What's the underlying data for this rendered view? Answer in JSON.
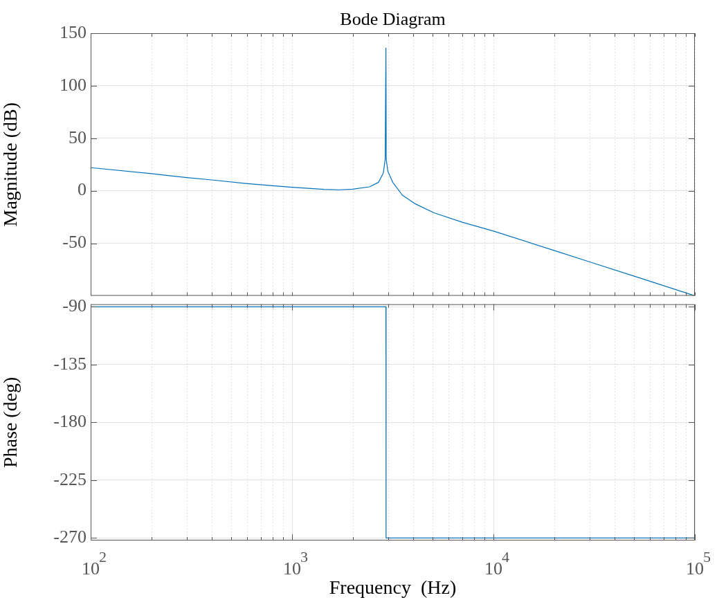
{
  "chart_data": [
    {
      "type": "line",
      "title": "Bode Diagram",
      "ylabel": "Magnitude (dB)",
      "tick_labels": "y",
      "grid": true,
      "xlim": [
        100,
        100000
      ],
      "xticks": [
        {
          "value": 100,
          "label": null
        },
        {
          "value": 200,
          "label": null
        },
        {
          "value": 300,
          "label": null
        },
        {
          "value": 400,
          "label": null
        },
        {
          "value": 500,
          "label": null
        },
        {
          "value": 600,
          "label": null
        },
        {
          "value": 700,
          "label": null
        },
        {
          "value": 800,
          "label": null
        },
        {
          "value": 900,
          "label": null
        },
        {
          "value": 1000,
          "label": null
        },
        {
          "value": 2000,
          "label": null
        },
        {
          "value": 3000,
          "label": null
        },
        {
          "value": 4000,
          "label": null
        },
        {
          "value": 5000,
          "label": null
        },
        {
          "value": 6000,
          "label": null
        },
        {
          "value": 7000,
          "label": null
        },
        {
          "value": 8000,
          "label": null
        },
        {
          "value": 9000,
          "label": null
        },
        {
          "value": 10000,
          "label": null
        },
        {
          "value": 20000,
          "label": null
        },
        {
          "value": 30000,
          "label": null
        },
        {
          "value": 40000,
          "label": null
        },
        {
          "value": 50000,
          "label": null
        },
        {
          "value": 60000,
          "label": null
        },
        {
          "value": 70000,
          "label": null
        },
        {
          "value": 80000,
          "label": null
        },
        {
          "value": 90000,
          "label": null
        },
        {
          "value": 100000,
          "label": null
        }
      ],
      "ylim": [
        -100,
        150
      ],
      "yticks": [
        -50,
        0,
        50,
        100,
        150
      ],
      "log": "x",
      "x": [
        100,
        200,
        300,
        400,
        600,
        1000,
        1440,
        1720,
        2000,
        2420,
        2690,
        2840,
        2900,
        2925,
        2935,
        2990,
        3160,
        3530,
        4050,
        5040,
        7000,
        10000,
        20100,
        29900,
        50400,
        100000
      ],
      "series": [
        {
          "color": "#0072bd",
          "values": [
            22,
            16.3,
            12.5,
            10.3,
            6.8,
            3.3,
            1.3,
            0.9,
            1.5,
            3.7,
            8.1,
            17,
            30,
            136,
            30,
            18.5,
            8.1,
            -4.2,
            -12,
            -20.8,
            -30,
            -38.4,
            -57,
            -67.6,
            -81.5,
            -100
          ]
        }
      ]
    },
    {
      "type": "line",
      "xlabel": "Frequency  (Hz)",
      "ylabel": "Phase (deg)",
      "grid": true,
      "xlim": [
        100,
        100000
      ],
      "xticks": [
        {
          "value": 100,
          "label": "10$^{2}$"
        },
        {
          "value": 200,
          "label": null
        },
        {
          "value": 300,
          "label": null
        },
        {
          "value": 400,
          "label": null
        },
        {
          "value": 500,
          "label": null
        },
        {
          "value": 600,
          "label": null
        },
        {
          "value": 700,
          "label": null
        },
        {
          "value": 800,
          "label": null
        },
        {
          "value": 900,
          "label": null
        },
        {
          "value": 1000,
          "label": "10$^{3}$"
        },
        {
          "value": 2000,
          "label": null
        },
        {
          "value": 3000,
          "label": null
        },
        {
          "value": 4000,
          "label": null
        },
        {
          "value": 5000,
          "label": null
        },
        {
          "value": 6000,
          "label": null
        },
        {
          "value": 7000,
          "label": null
        },
        {
          "value": 8000,
          "label": null
        },
        {
          "value": 9000,
          "label": null
        },
        {
          "value": 10000,
          "label": "10$^{4}$"
        },
        {
          "value": 20000,
          "label": null
        },
        {
          "value": 30000,
          "label": null
        },
        {
          "value": 40000,
          "label": null
        },
        {
          "value": 50000,
          "label": null
        },
        {
          "value": 60000,
          "label": null
        },
        {
          "value": 70000,
          "label": null
        },
        {
          "value": 80000,
          "label": null
        },
        {
          "value": 90000,
          "label": null
        },
        {
          "value": 100000,
          "label": "10$^{5}$"
        }
      ],
      "ylim": [
        -272,
        -88
      ],
      "yticks": [
        -270,
        -225,
        -180,
        -135,
        -90
      ],
      "log": "x",
      "x": [
        100,
        2925,
        2930,
        100000
      ],
      "series": [
        {
          "color": "#0072bd",
          "values": [
            -90,
            -90,
            -270,
            -270
          ]
        }
      ]
    }
  ]
}
